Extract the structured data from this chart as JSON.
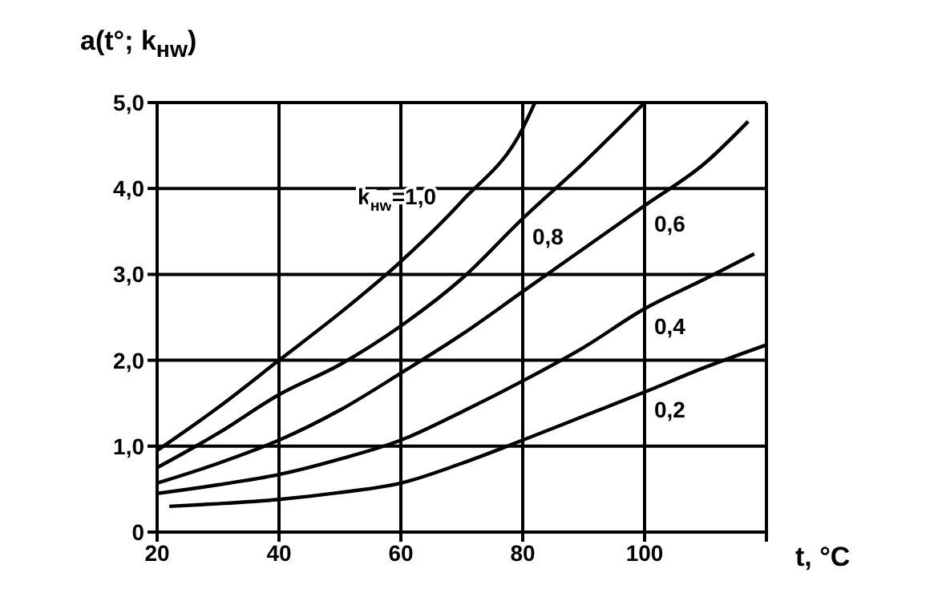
{
  "chart_data": {
    "type": "line",
    "ylabel": "a(t°; k$_{нw}$)",
    "xlabel": "t, °C",
    "xlim": [
      20,
      120
    ],
    "xticks": [
      20,
      40,
      60,
      80,
      100,
      {
        "value": 120,
        "label": null
      }
    ],
    "ylim": [
      0,
      5
    ],
    "yticks": [
      0,
      {
        "value": 1,
        "label": "1,0"
      },
      {
        "value": 2,
        "label": "2,0"
      },
      {
        "value": 3,
        "label": "3,0"
      },
      {
        "value": 4,
        "label": "4,0"
      },
      {
        "value": 5,
        "label": "5,0"
      }
    ],
    "grid": true,
    "marker": "none",
    "line_style": "solid",
    "series": [
      {
        "name": "k$_{нw}$=1,0",
        "color": "#000000",
        "x": [
          20,
          30,
          40,
          50,
          60,
          70,
          80,
          82
        ],
        "values": [
          0.95,
          1.45,
          2.0,
          2.55,
          3.15,
          3.85,
          4.7,
          5.0
        ]
      },
      {
        "name": "0,8",
        "color": "#000000",
        "x": [
          20,
          30,
          40,
          50,
          60,
          70,
          80,
          90,
          100
        ],
        "values": [
          0.75,
          1.15,
          1.6,
          1.95,
          2.4,
          2.95,
          3.65,
          4.3,
          5.0
        ]
      },
      {
        "name": "0,6",
        "color": "#000000",
        "x": [
          20,
          30,
          40,
          50,
          60,
          70,
          80,
          90,
          100,
          110,
          117
        ],
        "values": [
          0.57,
          0.8,
          1.07,
          1.42,
          1.85,
          2.3,
          2.8,
          3.3,
          3.8,
          4.3,
          4.78
        ]
      },
      {
        "name": "0,4",
        "color": "#000000",
        "x": [
          20,
          30,
          40,
          50,
          60,
          70,
          80,
          90,
          100,
          110,
          118
        ],
        "values": [
          0.45,
          0.55,
          0.67,
          0.85,
          1.07,
          1.4,
          1.76,
          2.15,
          2.6,
          2.95,
          3.24
        ]
      },
      {
        "name": "0,2",
        "color": "#000000",
        "x": [
          22,
          30,
          40,
          50,
          60,
          70,
          80,
          90,
          100,
          110,
          120
        ],
        "values": [
          0.3,
          0.33,
          0.38,
          0.46,
          0.57,
          0.8,
          1.07,
          1.35,
          1.63,
          1.92,
          2.18
        ]
      }
    ]
  }
}
